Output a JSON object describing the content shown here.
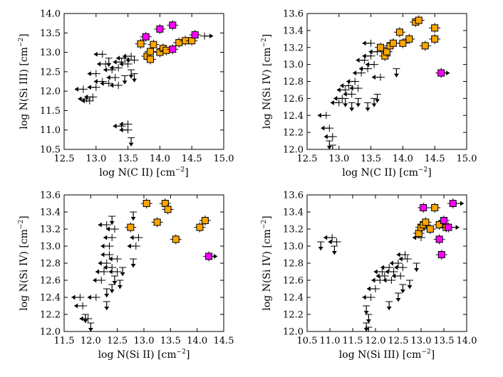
{
  "colors": {
    "limit": "#000000",
    "orange": "#ffa500",
    "magenta": "#ff00ff"
  },
  "chart_data": [
    {
      "id": "p1",
      "type": "scatter",
      "title": "",
      "xlabel_main": "log N(C II) [cm",
      "ylabel_main": "log N(Si III) [cm",
      "unit_suffix": "]",
      "unit_sup": "−2",
      "xlim": [
        12.5,
        15.0
      ],
      "ylim": [
        10.5,
        14.0
      ],
      "xticks": [
        "12.5",
        "13.0",
        "13.5",
        "14.0",
        "14.5",
        "15.0"
      ],
      "yticks": [
        "10.5",
        "11.0",
        "11.5",
        "12.0",
        "12.5",
        "13.0",
        "13.5",
        "14.0"
      ],
      "orange": [
        [
          13.7,
          13.22
        ],
        [
          13.8,
          12.9
        ],
        [
          13.85,
          13.02
        ],
        [
          13.85,
          12.82
        ],
        [
          13.9,
          13.2
        ],
        [
          14.0,
          13.0
        ],
        [
          14.05,
          13.1
        ],
        [
          14.1,
          13.05
        ],
        [
          14.3,
          13.25
        ],
        [
          14.4,
          13.3
        ],
        [
          14.5,
          13.3
        ]
      ],
      "magenta": [
        [
          13.78,
          13.4
        ],
        [
          14.0,
          13.6
        ],
        [
          14.2,
          13.7
        ],
        [
          14.2,
          13.08
        ],
        [
          14.55,
          13.45
        ]
      ],
      "limits": [
        [
          12.85,
          11.8,
          "l"
        ],
        [
          12.9,
          11.75,
          "l"
        ],
        [
          12.95,
          11.85,
          "l"
        ],
        [
          12.8,
          12.05,
          "l"
        ],
        [
          13.0,
          12.1,
          "l"
        ],
        [
          13.1,
          12.25,
          "l"
        ],
        [
          13.2,
          12.2,
          "l"
        ],
        [
          13.3,
          12.35,
          "l"
        ],
        [
          13.25,
          12.55,
          "l"
        ],
        [
          13.15,
          12.7,
          "l"
        ],
        [
          13.35,
          12.6,
          "l"
        ],
        [
          13.4,
          12.75,
          "l"
        ],
        [
          13.45,
          12.85,
          "l"
        ],
        [
          13.5,
          12.7,
          "l"
        ],
        [
          13.55,
          12.9,
          "l"
        ],
        [
          13.6,
          12.8,
          "l"
        ],
        [
          13.1,
          12.95,
          "l"
        ],
        [
          13.0,
          12.45,
          "l"
        ],
        [
          13.35,
          12.15,
          "l"
        ],
        [
          13.4,
          11.1,
          "l"
        ],
        [
          13.5,
          11.0,
          "l"
        ],
        [
          13.5,
          11.15,
          "l"
        ],
        [
          13.55,
          10.8,
          "d"
        ],
        [
          13.55,
          12.55,
          "d"
        ],
        [
          13.45,
          12.4,
          "d"
        ],
        [
          13.6,
          12.45,
          "d"
        ],
        [
          13.2,
          12.85,
          "d"
        ],
        [
          14.7,
          13.42,
          "r"
        ]
      ]
    },
    {
      "id": "p2",
      "type": "scatter",
      "title": "",
      "xlabel_main": "log N(C II) [cm",
      "ylabel_main": "log N(Si IV) [cm",
      "unit_suffix": "]",
      "unit_sup": "−2",
      "xlim": [
        12.5,
        15.0
      ],
      "ylim": [
        12.0,
        13.6
      ],
      "xticks": [
        "12.5",
        "13.0",
        "13.5",
        "14.0",
        "14.5",
        "15.0"
      ],
      "yticks": [
        "12.0",
        "12.2",
        "12.4",
        "12.6",
        "12.8",
        "13.0",
        "13.2",
        "13.4",
        "13.6"
      ],
      "orange": [
        [
          13.65,
          13.2
        ],
        [
          13.72,
          13.1
        ],
        [
          13.75,
          13.15
        ],
        [
          13.8,
          13.22
        ],
        [
          13.85,
          13.25
        ],
        [
          13.95,
          13.38
        ],
        [
          14.0,
          13.25
        ],
        [
          14.1,
          13.3
        ],
        [
          14.2,
          13.5
        ],
        [
          14.25,
          13.52
        ],
        [
          14.35,
          13.22
        ],
        [
          14.5,
          13.43
        ],
        [
          14.5,
          13.3
        ]
      ],
      "magenta": [
        [
          14.6,
          12.9
        ]
      ],
      "limits": [
        [
          12.8,
          12.4,
          "l"
        ],
        [
          12.85,
          12.25,
          "l"
        ],
        [
          12.9,
          12.15,
          "l"
        ],
        [
          12.85,
          12.1,
          "d"
        ],
        [
          13.0,
          12.55,
          "l"
        ],
        [
          13.05,
          12.6,
          "l"
        ],
        [
          13.1,
          12.7,
          "l"
        ],
        [
          13.15,
          12.75,
          "l"
        ],
        [
          13.2,
          12.65,
          "l"
        ],
        [
          13.25,
          12.8,
          "l"
        ],
        [
          13.3,
          12.72,
          "l"
        ],
        [
          13.35,
          12.9,
          "l"
        ],
        [
          13.4,
          13.05,
          "l"
        ],
        [
          13.5,
          13.1,
          "l"
        ],
        [
          13.45,
          12.95,
          "l"
        ],
        [
          13.55,
          13.0,
          "l"
        ],
        [
          13.6,
          13.15,
          "l"
        ],
        [
          13.65,
          12.85,
          "l"
        ],
        [
          13.5,
          13.25,
          "l"
        ],
        [
          13.1,
          12.6,
          "d"
        ],
        [
          13.2,
          12.55,
          "d"
        ],
        [
          13.3,
          12.6,
          "d"
        ],
        [
          13.45,
          12.55,
          "d"
        ],
        [
          13.55,
          12.6,
          "d"
        ],
        [
          12.9,
          12.05,
          "d"
        ],
        [
          13.9,
          12.95,
          "d"
        ],
        [
          13.6,
          12.65,
          "d"
        ],
        [
          14.6,
          12.9,
          "r"
        ]
      ]
    },
    {
      "id": "p3",
      "type": "scatter",
      "title": "",
      "xlabel_main": "log N(Si II) [cm",
      "ylabel_main": "log N(Si IV) [cm",
      "unit_suffix": "]",
      "unit_sup": "−2",
      "xlim": [
        11.5,
        14.5
      ],
      "ylim": [
        12.0,
        13.6
      ],
      "xticks": [
        "11.5",
        "12.0",
        "12.5",
        "13.0",
        "13.5",
        "14.0",
        "14.5"
      ],
      "yticks": [
        "12.0",
        "12.2",
        "12.4",
        "12.6",
        "12.8",
        "13.0",
        "13.2",
        "13.4",
        "13.6"
      ],
      "orange": [
        [
          12.75,
          13.22
        ],
        [
          13.05,
          13.5
        ],
        [
          13.25,
          13.28
        ],
        [
          13.4,
          13.5
        ],
        [
          13.45,
          13.43
        ],
        [
          13.6,
          13.08
        ],
        [
          14.05,
          13.22
        ],
        [
          14.15,
          13.3
        ]
      ],
      "magenta": [
        [
          14.22,
          12.88
        ]
      ],
      "limits": [
        [
          11.8,
          12.4,
          "l"
        ],
        [
          11.85,
          12.3,
          "l"
        ],
        [
          11.9,
          12.2,
          "d"
        ],
        [
          12.0,
          12.1,
          "d"
        ],
        [
          11.95,
          12.15,
          "l"
        ],
        [
          12.1,
          12.4,
          "l"
        ],
        [
          12.2,
          12.6,
          "l"
        ],
        [
          12.25,
          12.7,
          "l"
        ],
        [
          12.3,
          12.8,
          "l"
        ],
        [
          12.35,
          12.9,
          "l"
        ],
        [
          12.4,
          12.75,
          "l"
        ],
        [
          12.45,
          12.65,
          "d"
        ],
        [
          12.4,
          12.55,
          "d"
        ],
        [
          12.3,
          12.5,
          "d"
        ],
        [
          12.5,
          12.7,
          "l"
        ],
        [
          12.5,
          12.85,
          "l"
        ],
        [
          12.35,
          13.0,
          "l"
        ],
        [
          12.4,
          13.1,
          "l"
        ],
        [
          12.45,
          13.2,
          "l"
        ],
        [
          12.3,
          13.25,
          "l"
        ],
        [
          12.4,
          13.35,
          "d"
        ],
        [
          12.55,
          12.6,
          "d"
        ],
        [
          12.6,
          12.75,
          "d"
        ],
        [
          12.8,
          12.85,
          "d"
        ],
        [
          12.85,
          13.0,
          "l"
        ],
        [
          12.9,
          13.1,
          "l"
        ],
        [
          12.3,
          12.35,
          "d"
        ],
        [
          12.8,
          13.4,
          "d"
        ],
        [
          14.22,
          12.88,
          "r"
        ]
      ]
    },
    {
      "id": "p4",
      "type": "scatter",
      "title": "",
      "xlabel_main": "log N(Si III) [cm",
      "ylabel_main": "log N(Si IV) [cm",
      "unit_suffix": "]",
      "unit_sup": "−2",
      "xlim": [
        10.5,
        14.0
      ],
      "ylim": [
        12.0,
        13.6
      ],
      "xticks": [
        "10.5",
        "11.0",
        "11.5",
        "12.0",
        "12.5",
        "13.0",
        "13.5",
        "14.0"
      ],
      "yticks": [
        "12.0",
        "12.2",
        "12.4",
        "12.6",
        "12.8",
        "13.0",
        "13.2",
        "13.4",
        "13.6"
      ],
      "orange": [
        [
          12.95,
          13.15
        ],
        [
          13.0,
          13.22
        ],
        [
          13.05,
          13.25
        ],
        [
          13.1,
          13.28
        ],
        [
          13.2,
          13.2
        ],
        [
          13.3,
          13.45
        ],
        [
          13.4,
          13.25
        ],
        [
          13.55,
          13.22
        ]
      ],
      "magenta": [
        [
          13.05,
          13.45
        ],
        [
          13.4,
          13.08
        ],
        [
          13.45,
          12.9
        ],
        [
          13.5,
          13.3
        ],
        [
          13.6,
          13.22
        ],
        [
          13.7,
          13.5
        ]
      ],
      "limits": [
        [
          10.8,
          13.05,
          "d"
        ],
        [
          11.05,
          13.1,
          "l"
        ],
        [
          11.1,
          13.0,
          "d"
        ],
        [
          11.15,
          13.05,
          "l"
        ],
        [
          11.8,
          12.3,
          "d"
        ],
        [
          11.85,
          12.2,
          "d"
        ],
        [
          11.8,
          12.1,
          "d"
        ],
        [
          11.85,
          12.05,
          "d"
        ],
        [
          11.9,
          12.4,
          "l"
        ],
        [
          12.0,
          12.5,
          "l"
        ],
        [
          12.1,
          12.6,
          "l"
        ],
        [
          12.15,
          12.7,
          "l"
        ],
        [
          12.2,
          12.65,
          "l"
        ],
        [
          12.3,
          12.75,
          "l"
        ],
        [
          12.35,
          12.6,
          "l"
        ],
        [
          12.4,
          12.7,
          "l"
        ],
        [
          12.5,
          12.8,
          "l"
        ],
        [
          12.55,
          12.65,
          "l"
        ],
        [
          12.6,
          12.75,
          "l"
        ],
        [
          12.65,
          12.9,
          "l"
        ],
        [
          12.7,
          12.85,
          "l"
        ],
        [
          12.75,
          12.6,
          "d"
        ],
        [
          12.6,
          12.55,
          "d"
        ],
        [
          12.5,
          12.45,
          "d"
        ],
        [
          12.3,
          12.35,
          "d"
        ],
        [
          12.9,
          12.8,
          "d"
        ],
        [
          13.0,
          13.1,
          "l"
        ],
        [
          13.75,
          13.5,
          "r"
        ],
        [
          13.65,
          13.22,
          "r"
        ]
      ]
    }
  ]
}
